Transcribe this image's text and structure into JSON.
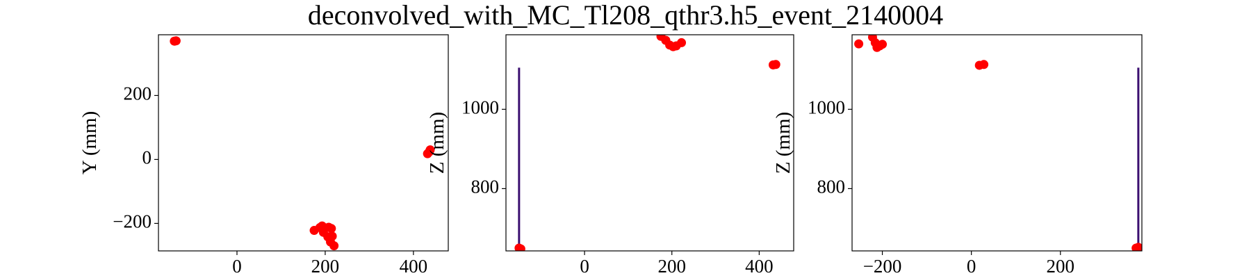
{
  "title": "deconvolved_with_MC_Tl208_qthr3.h5_event_2140004",
  "chart_data": [
    {
      "type": "scatter",
      "ylabel": "Y (mm)",
      "xlim": [
        -178,
        479
      ],
      "ylim": [
        -286,
        390
      ],
      "xticks": [
        0,
        200,
        400
      ],
      "yticks": [
        {
          "value": -200,
          "label": "−200"
        },
        0,
        200
      ],
      "series": [
        {
          "type": "scatter",
          "color": "#ff0000",
          "x": [
            -142,
            -138,
            432,
            436,
            438,
            175,
            188,
            193,
            200,
            208,
            214,
            196,
            206,
            216,
            220,
            212
          ],
          "y": [
            370,
            371,
            18,
            24,
            30,
            -222,
            -213,
            -208,
            -214,
            -212,
            -216,
            -228,
            -242,
            -240,
            -270,
            -258
          ]
        }
      ]
    },
    {
      "type": "scatter",
      "ylabel": "Z (mm)",
      "xlim": [
        -180,
        479
      ],
      "ylim": [
        643,
        1188
      ],
      "xticks": [
        0,
        200,
        400
      ],
      "yticks": [
        800,
        1000
      ],
      "series": [
        {
          "type": "line",
          "color": "#3b0f70",
          "x": [
            -150,
            -150
          ],
          "y": [
            650,
            1105
          ]
        },
        {
          "type": "scatter",
          "color": "#ff0000",
          "x": [
            -150,
            -146,
            175,
            186,
            195,
            203,
            210,
            222,
            432,
            438
          ],
          "y": [
            650,
            648,
            1184,
            1174,
            1162,
            1158,
            1160,
            1168,
            1112,
            1113
          ]
        }
      ]
    },
    {
      "type": "scatter",
      "ylabel": "Z (mm)",
      "xlim": [
        -268,
        383
      ],
      "ylim": [
        643,
        1188
      ],
      "xticks": [
        {
          "value": -200,
          "label": "−200"
        },
        0,
        200
      ],
      "yticks": [
        800,
        1000
      ],
      "series": [
        {
          "type": "line",
          "color": "#3b0f70",
          "x": [
            375,
            375
          ],
          "y": [
            650,
            1105
          ]
        },
        {
          "type": "scatter",
          "color": "#ff0000",
          "x": [
            -253,
            -222,
            -216,
            -212,
            -206,
            -200,
            18,
            28,
            370,
            375
          ],
          "y": [
            1165,
            1182,
            1168,
            1156,
            1160,
            1164,
            1111,
            1113,
            650,
            652
          ]
        }
      ]
    }
  ]
}
